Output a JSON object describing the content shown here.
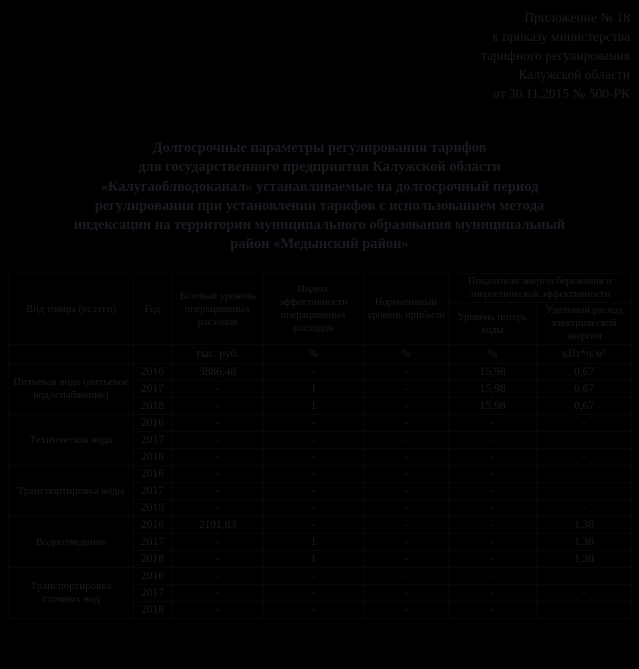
{
  "page": {
    "background_color": "#000000",
    "text_color": "#1a1a22"
  },
  "annex": {
    "lines": [
      "Приложение № 18",
      "к приказу министерства",
      "тарифного регулирования",
      "Калужской области",
      "от 30.11.2015 № 500-РК"
    ]
  },
  "title": {
    "lines": [
      "Долгосрочные параметры регулирования тарифов",
      "для государственного предприятия Калужской области",
      "«Калугаоблводоканал» устанавливаемые на долгосрочный период",
      "регулирования при установлении тарифов с использованием метода",
      "индексации на территории муниципального образования муниципальный",
      "район «Медынский район»"
    ]
  },
  "table": {
    "headers": {
      "col_product": "Вид товара (услуги)",
      "col_year": "Год",
      "col_base": "Базовый уровень операционных расходов",
      "col_index": "Индекс эффективности операционных расходов",
      "col_profit": "Нормативный уровень прибыли",
      "group_energy": "Показатели энергосбережения и энергетической эффективности",
      "col_losses": "Уровень потерь воды",
      "col_specific": "Удельный расход электрической энергии"
    },
    "units": {
      "base": "тыс. руб.",
      "index": "%",
      "profit": "%",
      "losses": "%",
      "specific": "кВт*ч/м³"
    },
    "groups": [
      {
        "service": "Питьевая вода (питьевое водоснабжение)",
        "rows": [
          {
            "year": "2016",
            "base": "3886,48",
            "index": "-",
            "profit": "-",
            "losses": "15,98",
            "specific": "0,67"
          },
          {
            "year": "2017",
            "base": "-",
            "index": "1",
            "profit": "-",
            "losses": "15,98",
            "specific": "0,67"
          },
          {
            "year": "2018",
            "base": "-",
            "index": "1",
            "profit": "-",
            "losses": "15,98",
            "specific": "0,67"
          }
        ]
      },
      {
        "service": "Техническая вода",
        "rows": [
          {
            "year": "2016",
            "base": "-",
            "index": "-",
            "profit": "-",
            "losses": "-",
            "specific": "-"
          },
          {
            "year": "2017",
            "base": "-",
            "index": "-",
            "profit": "-",
            "losses": "-",
            "specific": "-"
          },
          {
            "year": "2018",
            "base": "-",
            "index": "-",
            "profit": "-",
            "losses": "-",
            "specific": "-"
          }
        ]
      },
      {
        "service": "Транспортировка воды",
        "rows": [
          {
            "year": "2016",
            "base": "-",
            "index": "-",
            "profit": "-",
            "losses": "-",
            "specific": "-"
          },
          {
            "year": "2017",
            "base": "-",
            "index": "-",
            "profit": "-",
            "losses": "-",
            "specific": "-"
          },
          {
            "year": "2018",
            "base": "-",
            "index": "-",
            "profit": "-",
            "losses": "-",
            "specific": "-"
          }
        ]
      },
      {
        "service": "Водоотведение",
        "rows": [
          {
            "year": "2016",
            "base": "2191,83",
            "index": "-",
            "profit": "-",
            "losses": "-",
            "specific": "1,38"
          },
          {
            "year": "2017",
            "base": "-",
            "index": "1",
            "profit": "-",
            "losses": "-",
            "specific": "1,38"
          },
          {
            "year": "2018",
            "base": "-",
            "index": "1",
            "profit": "-",
            "losses": "-",
            "specific": "1,38"
          }
        ]
      },
      {
        "service": "Транспортировка сточных вод",
        "rows": [
          {
            "year": "2016",
            "base": "-",
            "index": "-",
            "profit": "-",
            "losses": "-",
            "specific": "-"
          },
          {
            "year": "2017",
            "base": "-",
            "index": "-",
            "profit": "-",
            "losses": "-",
            "specific": "-"
          },
          {
            "year": "2018",
            "base": "-",
            "index": "-",
            "profit": "-",
            "losses": "-",
            "specific": "-"
          }
        ]
      }
    ]
  }
}
